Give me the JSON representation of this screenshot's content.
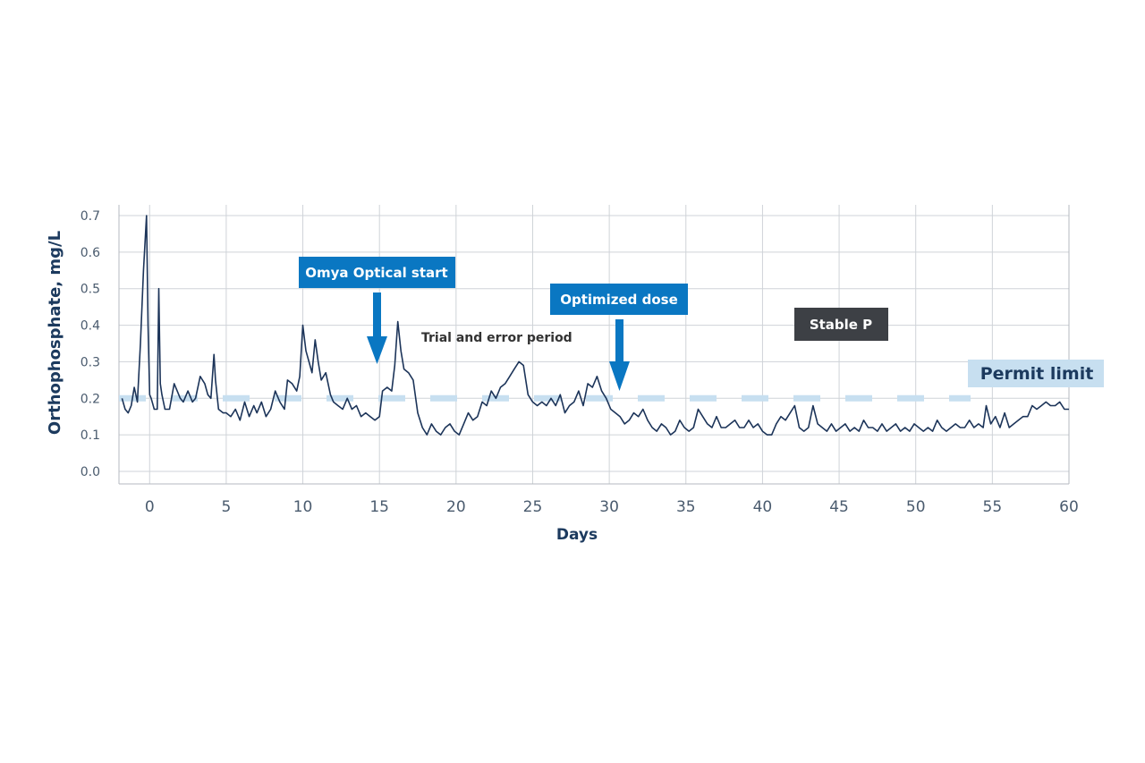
{
  "chart_data": {
    "type": "line",
    "xlabel": "Days",
    "ylabel": "Orthophosphate, mg/L",
    "xlim": [
      -2,
      60
    ],
    "ylim": [
      0,
      0.7
    ],
    "xticks": [
      0,
      5,
      10,
      15,
      20,
      25,
      30,
      35,
      40,
      45,
      50,
      55,
      60
    ],
    "yticks": [
      "0.0",
      "0.1",
      "0.2",
      "0.3",
      "0.4",
      "0.5",
      "0.6",
      "0.7"
    ],
    "grid": true,
    "series": [
      {
        "color": "#1c3459",
        "x": [
          -1.8,
          -1.6,
          -1.4,
          -1.2,
          -1.0,
          -0.8,
          -0.6,
          -0.4,
          -0.2,
          -0.1,
          0.0,
          0.1,
          0.3,
          0.5,
          0.6,
          0.7,
          0.8,
          1.0,
          1.3,
          1.6,
          1.8,
          2.0,
          2.2,
          2.5,
          2.8,
          3.0,
          3.3,
          3.6,
          3.8,
          4.0,
          4.2,
          4.3,
          4.5,
          4.8,
          5.0,
          5.3,
          5.6,
          5.9,
          6.2,
          6.5,
          6.8,
          7.0,
          7.3,
          7.6,
          7.9,
          8.2,
          8.5,
          8.8,
          9.0,
          9.3,
          9.6,
          9.8,
          10.0,
          10.2,
          10.4,
          10.6,
          10.8,
          11.0,
          11.2,
          11.5,
          11.8,
          12.0,
          12.3,
          12.6,
          12.9,
          13.2,
          13.5,
          13.8,
          14.1,
          14.4,
          14.7,
          15.0,
          15.2,
          15.5,
          15.8,
          16.0,
          16.2,
          16.4,
          16.6,
          16.9,
          17.2,
          17.5,
          17.8,
          18.1,
          18.4,
          18.7,
          19.0,
          19.3,
          19.6,
          19.9,
          20.2,
          20.5,
          20.8,
          21.1,
          21.4,
          21.7,
          22.0,
          22.3,
          22.6,
          22.9,
          23.2,
          23.5,
          23.8,
          24.1,
          24.4,
          24.7,
          25.0,
          25.3,
          25.6,
          25.9,
          26.2,
          26.5,
          26.8,
          27.1,
          27.4,
          27.7,
          28.0,
          28.3,
          28.6,
          28.9,
          29.2,
          29.5,
          29.8,
          30.1,
          30.4,
          30.7,
          31.0,
          31.3,
          31.6,
          31.9,
          32.2,
          32.5,
          32.8,
          33.1,
          33.4,
          33.7,
          34.0,
          34.3,
          34.6,
          34.9,
          35.2,
          35.5,
          35.8,
          36.1,
          36.4,
          36.7,
          37.0,
          37.3,
          37.6,
          37.9,
          38.2,
          38.5,
          38.8,
          39.1,
          39.4,
          39.7,
          40.0,
          40.3,
          40.6,
          40.9,
          41.2,
          41.5,
          41.8,
          42.1,
          42.4,
          42.7,
          43.0,
          43.3,
          43.6,
          43.9,
          44.2,
          44.5,
          44.8,
          45.1,
          45.4,
          45.7,
          46.0,
          46.3,
          46.6,
          46.9,
          47.2,
          47.5,
          47.8,
          48.1,
          48.4,
          48.7,
          49.0,
          49.3,
          49.6,
          49.9,
          50.2,
          50.5,
          50.8,
          51.1,
          51.4,
          51.7,
          52.0,
          52.3,
          52.6,
          52.9,
          53.2,
          53.5,
          53.8,
          54.1,
          54.4,
          54.6,
          54.9,
          55.2,
          55.5,
          55.8,
          56.1,
          56.4,
          56.7,
          57.0,
          57.3,
          57.6,
          57.9,
          58.2,
          58.5,
          58.8,
          59.1,
          59.4,
          59.7,
          60.0
        ],
        "y": [
          0.2,
          0.17,
          0.16,
          0.18,
          0.23,
          0.19,
          0.35,
          0.55,
          0.7,
          0.4,
          0.21,
          0.2,
          0.17,
          0.17,
          0.5,
          0.24,
          0.21,
          0.17,
          0.17,
          0.24,
          0.22,
          0.2,
          0.19,
          0.22,
          0.19,
          0.2,
          0.26,
          0.24,
          0.21,
          0.2,
          0.32,
          0.25,
          0.17,
          0.16,
          0.16,
          0.15,
          0.17,
          0.14,
          0.19,
          0.15,
          0.18,
          0.16,
          0.19,
          0.15,
          0.17,
          0.22,
          0.19,
          0.17,
          0.25,
          0.24,
          0.22,
          0.26,
          0.4,
          0.33,
          0.3,
          0.27,
          0.36,
          0.3,
          0.25,
          0.27,
          0.21,
          0.19,
          0.18,
          0.17,
          0.2,
          0.17,
          0.18,
          0.15,
          0.16,
          0.15,
          0.14,
          0.15,
          0.22,
          0.23,
          0.22,
          0.29,
          0.41,
          0.33,
          0.28,
          0.27,
          0.25,
          0.16,
          0.12,
          0.1,
          0.13,
          0.11,
          0.1,
          0.12,
          0.13,
          0.11,
          0.1,
          0.13,
          0.16,
          0.14,
          0.15,
          0.19,
          0.18,
          0.22,
          0.2,
          0.23,
          0.24,
          0.26,
          0.28,
          0.3,
          0.29,
          0.21,
          0.19,
          0.18,
          0.19,
          0.18,
          0.2,
          0.18,
          0.21,
          0.16,
          0.18,
          0.19,
          0.22,
          0.18,
          0.24,
          0.23,
          0.26,
          0.22,
          0.2,
          0.17,
          0.16,
          0.15,
          0.13,
          0.14,
          0.16,
          0.15,
          0.17,
          0.14,
          0.12,
          0.11,
          0.13,
          0.12,
          0.1,
          0.11,
          0.14,
          0.12,
          0.11,
          0.12,
          0.17,
          0.15,
          0.13,
          0.12,
          0.15,
          0.12,
          0.12,
          0.13,
          0.14,
          0.12,
          0.12,
          0.14,
          0.12,
          0.13,
          0.11,
          0.1,
          0.1,
          0.13,
          0.15,
          0.14,
          0.16,
          0.18,
          0.12,
          0.11,
          0.12,
          0.18,
          0.13,
          0.12,
          0.11,
          0.13,
          0.11,
          0.12,
          0.13,
          0.11,
          0.12,
          0.11,
          0.14,
          0.12,
          0.12,
          0.11,
          0.13,
          0.11,
          0.12,
          0.13,
          0.11,
          0.12,
          0.11,
          0.13,
          0.12,
          0.11,
          0.12,
          0.11,
          0.14,
          0.12,
          0.11,
          0.12,
          0.13,
          0.12,
          0.12,
          0.14,
          0.12,
          0.13,
          0.12,
          0.18,
          0.13,
          0.15,
          0.12,
          0.16,
          0.12,
          0.13,
          0.14,
          0.15,
          0.15,
          0.18,
          0.17,
          0.18,
          0.19,
          0.18,
          0.18,
          0.19,
          0.17,
          0.17
        ]
      }
    ],
    "reference_lines": [
      {
        "y": 0.2,
        "label": "Permit limit",
        "style": "dashed",
        "color": "#c7dff0"
      }
    ],
    "annotations": [
      {
        "text": "Omya Optical start",
        "x": 15,
        "style": "box-arrow",
        "color": "#0a77c2"
      },
      {
        "text": "Optimized dose",
        "x": 31,
        "style": "box-arrow",
        "color": "#0a77c2"
      },
      {
        "text": "Trial and error period",
        "style": "plain"
      },
      {
        "text": "Stable P",
        "style": "box",
        "color": "#3d4045"
      }
    ]
  }
}
